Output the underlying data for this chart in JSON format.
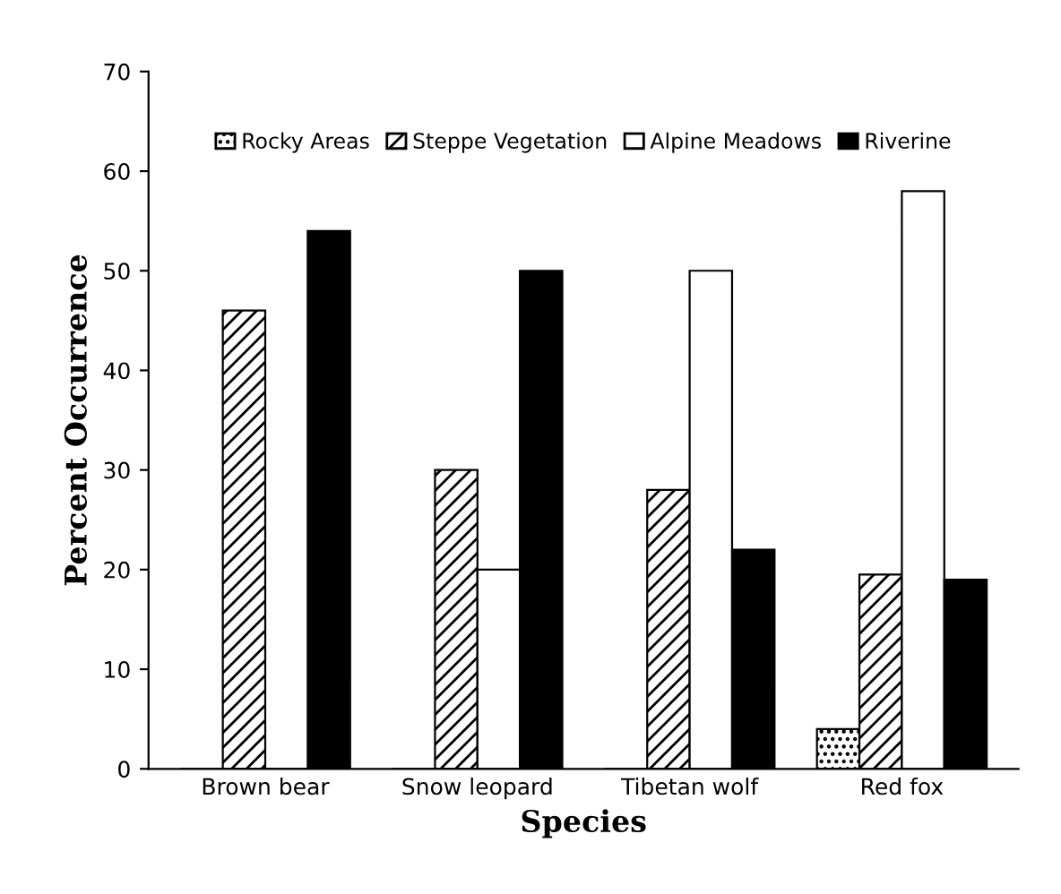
{
  "chart_data": {
    "type": "bar",
    "xlabel": "Species",
    "ylabel": "Percent Occurrence",
    "categories": [
      "Brown bear",
      "Snow leopard",
      "Tibetan wolf",
      "Red fox"
    ],
    "series": [
      {
        "name": "Rocky Areas",
        "color": "#000000",
        "values": [
          0,
          0,
          0,
          4
        ]
      },
      {
        "name": "Steppe Vegetation",
        "color": "#000000",
        "values": [
          46,
          30,
          28,
          19.5
        ]
      },
      {
        "name": "Alpine Meadows",
        "color": "#ffffff",
        "values": [
          0,
          20,
          50,
          58
        ]
      },
      {
        "name": "Riverine",
        "color": "#000000",
        "values": [
          54,
          50,
          22,
          19
        ]
      }
    ],
    "ylim": [
      0,
      70
    ],
    "yticks": [
      0,
      10,
      20,
      30,
      40,
      50,
      60,
      70
    ],
    "grid": false,
    "legend": "top"
  }
}
